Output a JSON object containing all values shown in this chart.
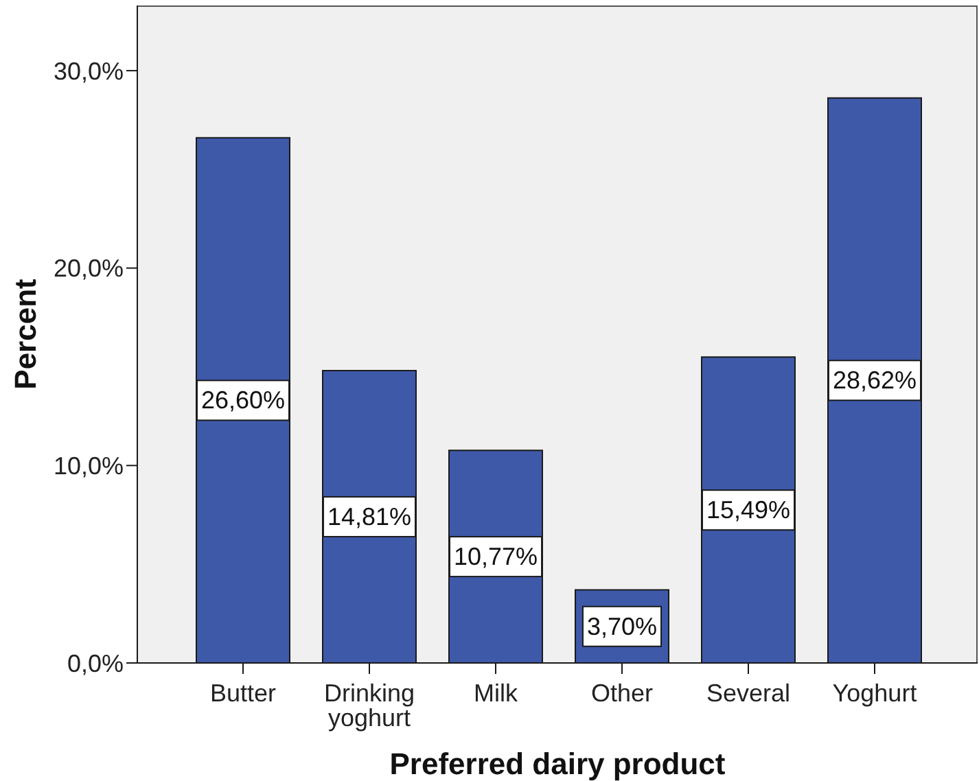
{
  "chart_data": {
    "type": "bar",
    "xlabel": "Preferred dairy product",
    "ylabel": "Percent",
    "categories": [
      "Butter",
      "Drinking yoghurt",
      "Milk",
      "Other",
      "Several",
      "Yoghurt"
    ],
    "values": [
      26.6,
      14.81,
      10.77,
      3.7,
      15.49,
      28.62
    ],
    "color": "#3f59a9",
    "value_labels": [
      "26,60%",
      "14,81%",
      "10,77%",
      "3,70%",
      "15,49%",
      "28,62%"
    ],
    "ylim": [
      0,
      33.3
    ],
    "yticks": [
      {
        "value": 0,
        "label": "0,0%"
      },
      {
        "value": 10,
        "label": "10,0%"
      },
      {
        "value": 20,
        "label": "20,0%"
      },
      {
        "value": 30,
        "label": "30,0%"
      }
    ]
  }
}
